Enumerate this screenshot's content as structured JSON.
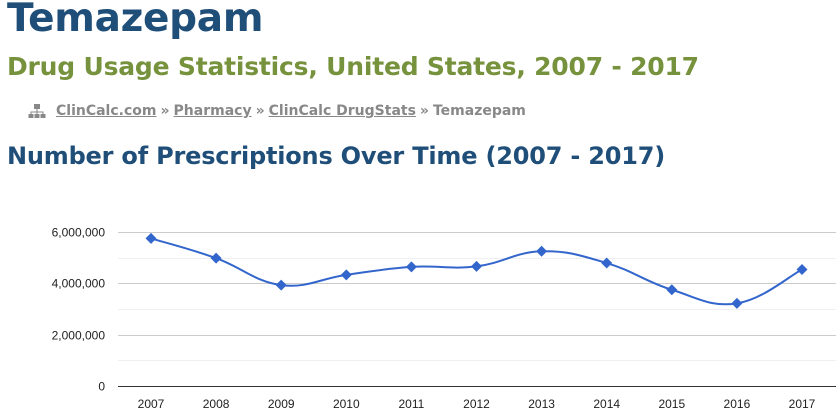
{
  "page": {
    "title": "Temazepam",
    "subtitle": "Drug Usage Statistics, United States, 2007 - 2017"
  },
  "breadcrumb": {
    "icon": "sitemap-icon",
    "items": [
      {
        "label": "ClinCalc.com",
        "link": true
      },
      {
        "label": "Pharmacy",
        "link": true
      },
      {
        "label": "ClinCalc DrugStats",
        "link": true
      },
      {
        "label": "Temazepam",
        "link": false
      }
    ],
    "separator": "»"
  },
  "section": {
    "title": "Number of Prescriptions Over Time (2007 - 2017)"
  },
  "colors": {
    "title": "#1f4e79",
    "subtitle": "#76923c",
    "series": "#3366cc"
  },
  "chart_data": {
    "type": "line",
    "title": "",
    "xlabel": "",
    "ylabel": "",
    "x": [
      "2007",
      "2008",
      "2009",
      "2010",
      "2011",
      "2012",
      "2013",
      "2014",
      "2015",
      "2016",
      "2017"
    ],
    "series": [
      {
        "values": [
          5750000,
          4980000,
          3930000,
          4330000,
          4640000,
          4660000,
          5250000,
          4790000,
          3750000,
          3220000,
          4540000
        ]
      }
    ],
    "ylim": [
      0,
      6000000
    ],
    "y_ticks": [
      0,
      2000000,
      4000000,
      6000000
    ],
    "y_tick_labels": [
      "0",
      "2,000,000",
      "4,000,000",
      "6,000,000"
    ],
    "grid": true,
    "marker": "diamond",
    "smooth": true,
    "legend": "none"
  }
}
